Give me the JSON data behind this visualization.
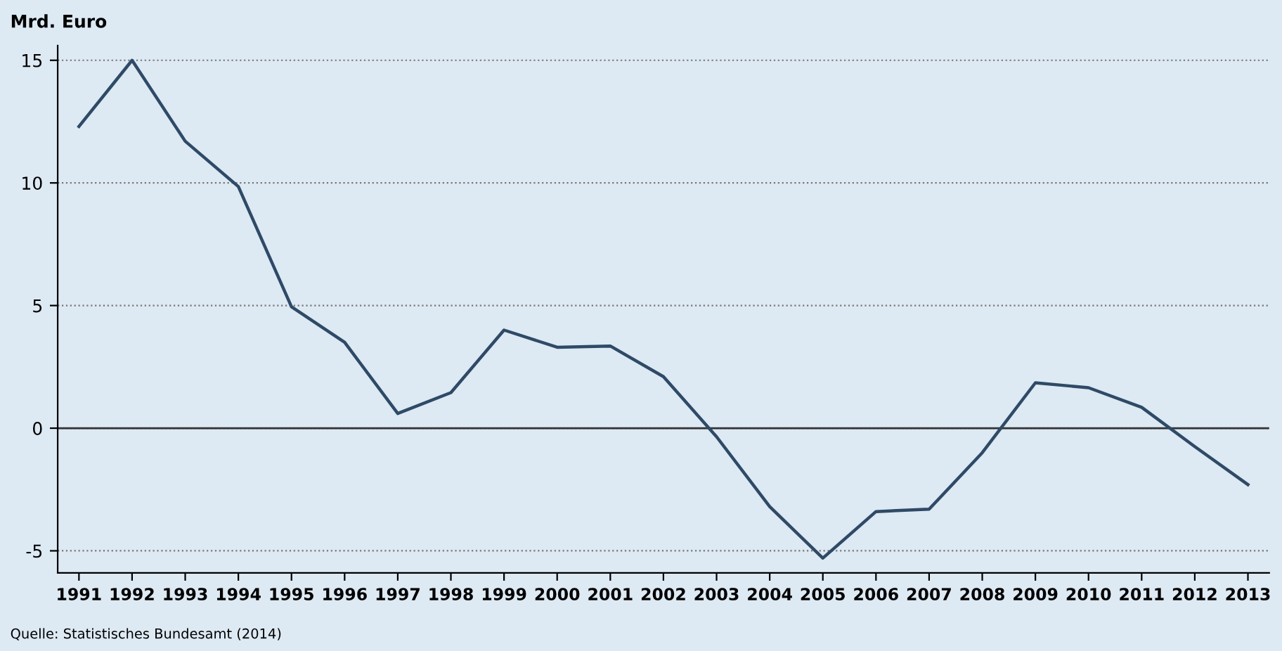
{
  "chart_data": {
    "type": "line",
    "ylabel": "Mrd. Euro",
    "annotations": [
      "Quelle: Statistisches Bundesamt (2014)"
    ],
    "categories": [
      "1991",
      "1992",
      "1993",
      "1994",
      "1995",
      "1996",
      "1997",
      "1998",
      "1999",
      "2000",
      "2001",
      "2002",
      "2003",
      "2004",
      "2005",
      "2006",
      "2007",
      "2008",
      "2009",
      "2010",
      "2011",
      "2012",
      "2013"
    ],
    "series": [
      {
        "color": "#2e4a66",
        "values": [
          12.3,
          15.0,
          11.7,
          9.85,
          4.95,
          3.5,
          0.6,
          1.45,
          4.0,
          3.3,
          3.35,
          2.1,
          -0.35,
          -3.2,
          -5.3,
          -3.4,
          -3.3,
          -1.0,
          1.85,
          1.65,
          0.85,
          -0.75,
          -2.3
        ]
      }
    ],
    "ylim": [
      -5.9,
      15.6
    ],
    "yticks": [
      -5,
      0,
      5,
      10,
      15
    ],
    "grid": "y",
    "marker": "none",
    "line_style": "solid",
    "ref_lines": [
      {
        "axis": "y",
        "value": 0,
        "label": null,
        "color": "#333333",
        "line_style": "solid"
      }
    ]
  }
}
